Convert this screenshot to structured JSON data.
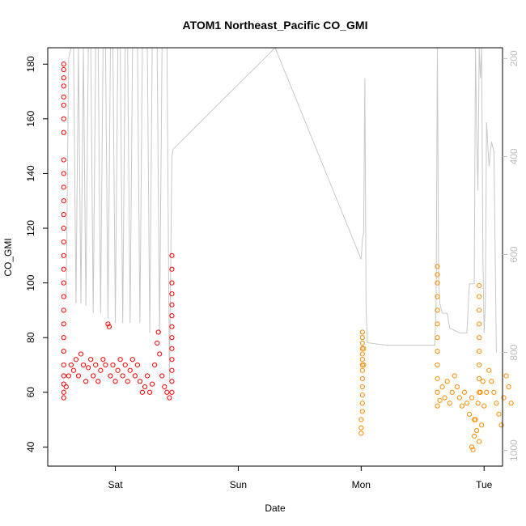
{
  "chart_data": {
    "type": "scatter",
    "title": "ATOM1 Northeast_Pacific CO_GMI",
    "xlabel": "Date",
    "ylabel": "CO_GMI",
    "x_ticks": [
      {
        "label": "Sat",
        "day": 1.0
      },
      {
        "label": "Sun",
        "day": 2.0
      },
      {
        "label": "Mon",
        "day": 3.0
      },
      {
        "label": "Tue",
        "day": 4.0
      }
    ],
    "x_range_days": [
      0.45,
      4.15
    ],
    "y_left": {
      "ticks": [
        40,
        60,
        80,
        100,
        120,
        140,
        160,
        180
      ],
      "range": [
        33,
        186
      ]
    },
    "y_right": {
      "ticks": [
        200,
        400,
        600,
        800,
        1000
      ],
      "range": [
        1032,
        178
      ],
      "color": "#bdbdbd",
      "reversed": true
    },
    "grid": false,
    "colors": {
      "series1": "#ff0000",
      "series2": "#ff8c00",
      "pressure": "#c8c8c8"
    },
    "series": [
      {
        "color": "#ff0000",
        "points": [
          [
            0.58,
            58
          ],
          [
            0.58,
            60
          ],
          [
            0.58,
            63
          ],
          [
            0.58,
            66
          ],
          [
            0.58,
            70
          ],
          [
            0.58,
            75
          ],
          [
            0.58,
            80
          ],
          [
            0.58,
            85
          ],
          [
            0.58,
            90
          ],
          [
            0.58,
            95
          ],
          [
            0.58,
            100
          ],
          [
            0.58,
            105
          ],
          [
            0.58,
            110
          ],
          [
            0.58,
            115
          ],
          [
            0.58,
            120
          ],
          [
            0.58,
            125
          ],
          [
            0.58,
            130
          ],
          [
            0.58,
            135
          ],
          [
            0.58,
            140
          ],
          [
            0.58,
            145
          ],
          [
            0.58,
            155
          ],
          [
            0.58,
            160
          ],
          [
            0.58,
            165
          ],
          [
            0.58,
            168
          ],
          [
            0.58,
            172
          ],
          [
            0.58,
            175
          ],
          [
            0.58,
            178
          ],
          [
            0.58,
            180
          ],
          [
            0.6,
            62
          ],
          [
            0.62,
            66
          ],
          [
            0.64,
            70
          ],
          [
            0.66,
            68
          ],
          [
            0.68,
            72
          ],
          [
            0.7,
            66
          ],
          [
            0.72,
            74
          ],
          [
            0.74,
            70
          ],
          [
            0.76,
            64
          ],
          [
            0.78,
            69
          ],
          [
            0.8,
            72
          ],
          [
            0.82,
            66
          ],
          [
            0.84,
            70
          ],
          [
            0.86,
            64
          ],
          [
            0.88,
            68
          ],
          [
            0.9,
            72
          ],
          [
            0.92,
            70
          ],
          [
            0.94,
            85
          ],
          [
            0.95,
            84
          ],
          [
            0.96,
            66
          ],
          [
            0.98,
            70
          ],
          [
            1.0,
            64
          ],
          [
            1.02,
            68
          ],
          [
            1.04,
            72
          ],
          [
            1.06,
            66
          ],
          [
            1.08,
            70
          ],
          [
            1.1,
            64
          ],
          [
            1.12,
            68
          ],
          [
            1.14,
            72
          ],
          [
            1.16,
            66
          ],
          [
            1.18,
            70
          ],
          [
            1.2,
            64
          ],
          [
            1.22,
            60
          ],
          [
            1.24,
            62
          ],
          [
            1.26,
            66
          ],
          [
            1.28,
            60
          ],
          [
            1.3,
            63
          ],
          [
            1.32,
            70
          ],
          [
            1.34,
            78
          ],
          [
            1.35,
            82
          ],
          [
            1.36,
            74
          ],
          [
            1.38,
            66
          ],
          [
            1.4,
            62
          ],
          [
            1.42,
            60
          ],
          [
            1.44,
            58
          ],
          [
            1.46,
            60
          ],
          [
            1.46,
            64
          ],
          [
            1.46,
            68
          ],
          [
            1.46,
            72
          ],
          [
            1.46,
            76
          ],
          [
            1.46,
            80
          ],
          [
            1.46,
            84
          ],
          [
            1.46,
            88
          ],
          [
            1.46,
            92
          ],
          [
            1.46,
            96
          ],
          [
            1.46,
            100
          ],
          [
            1.46,
            105
          ],
          [
            1.46,
            110
          ]
        ]
      },
      {
        "color": "#ff8c00",
        "points": [
          [
            3.0,
            45
          ],
          [
            3.0,
            47
          ],
          [
            3.0,
            50
          ],
          [
            3.01,
            53
          ],
          [
            3.01,
            56
          ],
          [
            3.01,
            59
          ],
          [
            3.01,
            62
          ],
          [
            3.01,
            65
          ],
          [
            3.01,
            68
          ],
          [
            3.01,
            70
          ],
          [
            3.01,
            72
          ],
          [
            3.01,
            74
          ],
          [
            3.01,
            76
          ],
          [
            3.01,
            78
          ],
          [
            3.01,
            80
          ],
          [
            3.01,
            82
          ],
          [
            3.02,
            76
          ],
          [
            3.02,
            70
          ],
          [
            3.62,
            55
          ],
          [
            3.62,
            60
          ],
          [
            3.62,
            65
          ],
          [
            3.62,
            70
          ],
          [
            3.62,
            75
          ],
          [
            3.62,
            80
          ],
          [
            3.62,
            85
          ],
          [
            3.62,
            90
          ],
          [
            3.62,
            95
          ],
          [
            3.62,
            100
          ],
          [
            3.62,
            103
          ],
          [
            3.62,
            106
          ],
          [
            3.64,
            57
          ],
          [
            3.66,
            62
          ],
          [
            3.68,
            58
          ],
          [
            3.7,
            64
          ],
          [
            3.72,
            56
          ],
          [
            3.74,
            60
          ],
          [
            3.76,
            66
          ],
          [
            3.78,
            62
          ],
          [
            3.8,
            58
          ],
          [
            3.82,
            55
          ],
          [
            3.84,
            60
          ],
          [
            3.86,
            56
          ],
          [
            3.88,
            52
          ],
          [
            3.9,
            58
          ],
          [
            3.92,
            50
          ],
          [
            3.94,
            46
          ],
          [
            3.96,
            42
          ],
          [
            3.98,
            48
          ],
          [
            4.0,
            55
          ],
          [
            4.02,
            60
          ],
          [
            4.04,
            68
          ],
          [
            4.06,
            64
          ],
          [
            4.08,
            60
          ],
          [
            4.1,
            56
          ],
          [
            4.12,
            52
          ],
          [
            4.14,
            48
          ],
          [
            4.16,
            58
          ],
          [
            4.18,
            66
          ],
          [
            4.2,
            62
          ],
          [
            4.22,
            56
          ],
          [
            3.9,
            40
          ],
          [
            3.91,
            39
          ],
          [
            3.92,
            44
          ],
          [
            3.93,
            50
          ],
          [
            3.95,
            56
          ],
          [
            3.97,
            60
          ],
          [
            3.99,
            64
          ],
          [
            3.96,
            60
          ],
          [
            3.96,
            65
          ],
          [
            3.96,
            70
          ],
          [
            3.96,
            75
          ],
          [
            3.96,
            80
          ],
          [
            3.96,
            85
          ],
          [
            3.96,
            90
          ],
          [
            3.96,
            95
          ],
          [
            3.96,
            99
          ]
        ]
      }
    ],
    "pressure_line": [
      [
        0.6,
        690
      ],
      [
        0.62,
        200
      ],
      [
        0.64,
        178
      ],
      [
        0.66,
        178
      ],
      [
        0.68,
        700
      ],
      [
        0.7,
        178
      ],
      [
        0.72,
        700
      ],
      [
        0.74,
        178
      ],
      [
        0.76,
        705
      ],
      [
        0.78,
        178
      ],
      [
        0.8,
        178
      ],
      [
        0.82,
        720
      ],
      [
        0.84,
        178
      ],
      [
        0.86,
        178
      ],
      [
        0.88,
        720
      ],
      [
        0.9,
        178
      ],
      [
        0.92,
        178
      ],
      [
        0.94,
        730
      ],
      [
        0.96,
        178
      ],
      [
        0.98,
        178
      ],
      [
        1.0,
        740
      ],
      [
        1.02,
        178
      ],
      [
        1.04,
        178
      ],
      [
        1.06,
        740
      ],
      [
        1.08,
        178
      ],
      [
        1.1,
        178
      ],
      [
        1.12,
        740
      ],
      [
        1.14,
        178
      ],
      [
        1.18,
        178
      ],
      [
        1.2,
        740
      ],
      [
        1.22,
        178
      ],
      [
        1.26,
        178
      ],
      [
        1.28,
        760
      ],
      [
        1.3,
        178
      ],
      [
        1.34,
        178
      ],
      [
        1.36,
        760
      ],
      [
        1.38,
        178
      ],
      [
        1.42,
        178
      ],
      [
        1.44,
        860
      ],
      [
        1.46,
        400
      ],
      [
        1.47,
        385
      ],
      [
        2.3,
        178
      ],
      [
        3.0,
        610
      ],
      [
        3.01,
        570
      ],
      [
        3.02,
        555
      ],
      [
        3.03,
        240
      ],
      [
        3.04,
        710
      ],
      [
        3.05,
        780
      ],
      [
        3.2,
        785
      ],
      [
        3.6,
        785
      ],
      [
        3.61,
        700
      ],
      [
        3.62,
        178
      ],
      [
        3.63,
        650
      ],
      [
        3.64,
        700
      ],
      [
        3.66,
        720
      ],
      [
        3.7,
        720
      ],
      [
        3.72,
        750
      ],
      [
        3.8,
        760
      ],
      [
        3.86,
        760
      ],
      [
        3.88,
        660
      ],
      [
        3.92,
        660
      ],
      [
        3.93,
        178
      ],
      [
        3.94,
        360
      ],
      [
        3.95,
        470
      ],
      [
        3.96,
        178
      ],
      [
        3.97,
        240
      ],
      [
        3.98,
        178
      ],
      [
        3.99,
        600
      ],
      [
        4.0,
        760
      ],
      [
        4.01,
        700
      ],
      [
        4.02,
        330
      ],
      [
        4.04,
        420
      ],
      [
        4.06,
        370
      ],
      [
        4.08,
        390
      ],
      [
        4.1,
        800
      ]
    ]
  }
}
